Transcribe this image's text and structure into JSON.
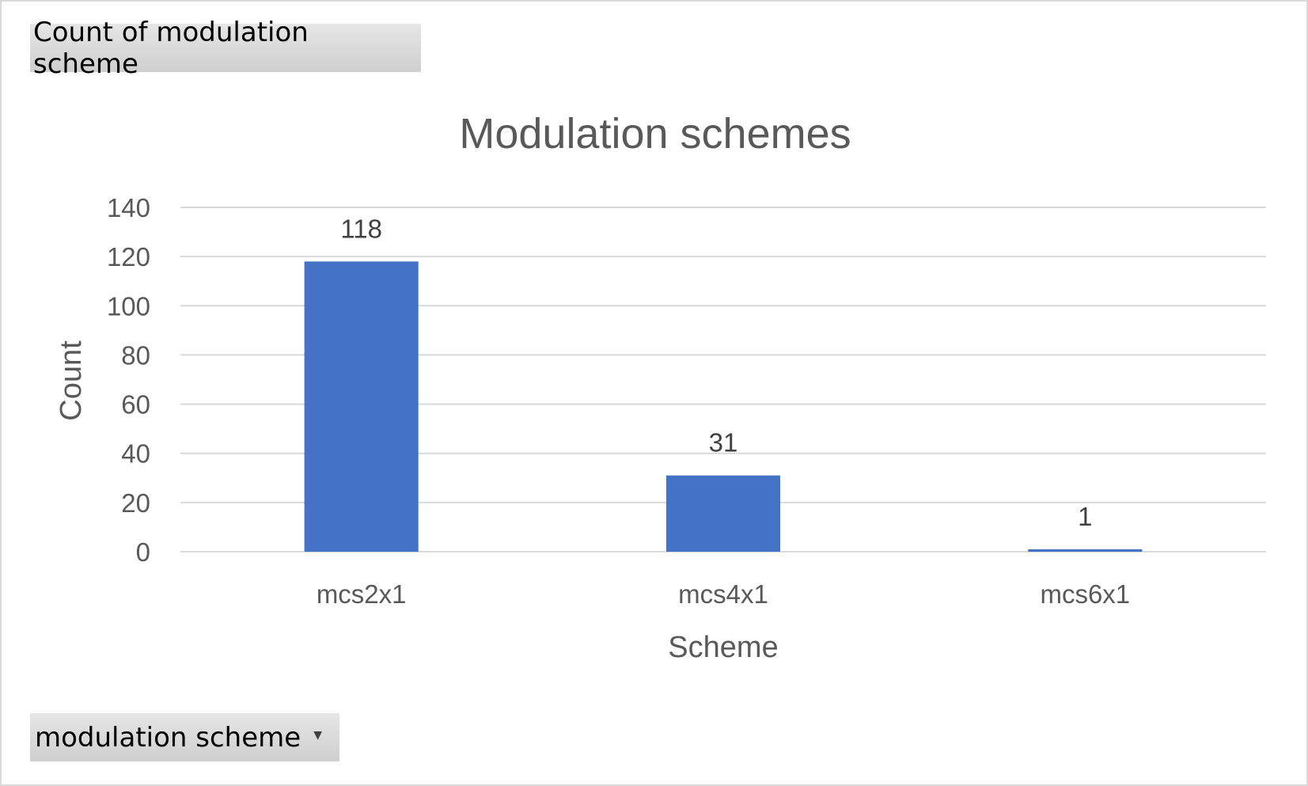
{
  "pivot": {
    "value_field_label": "Count of modulation scheme",
    "axis_field_label": "modulation scheme",
    "axis_field_dropdown_icon": "dropdown-arrow-icon"
  },
  "chart_data": {
    "type": "bar",
    "title": "Modulation schemes",
    "xlabel": "Scheme",
    "ylabel": "Count",
    "categories": [
      "mcs2x1",
      "mcs4x1",
      "mcs6x1"
    ],
    "values": [
      118,
      31,
      1
    ],
    "ylim": [
      0,
      140
    ],
    "yticks": [
      0,
      20,
      40,
      60,
      80,
      100,
      120,
      140
    ],
    "grid": true,
    "legend": "none",
    "data_labels": true,
    "bar_color": "#4472C4",
    "gridline_color": "#d9d9d9"
  }
}
